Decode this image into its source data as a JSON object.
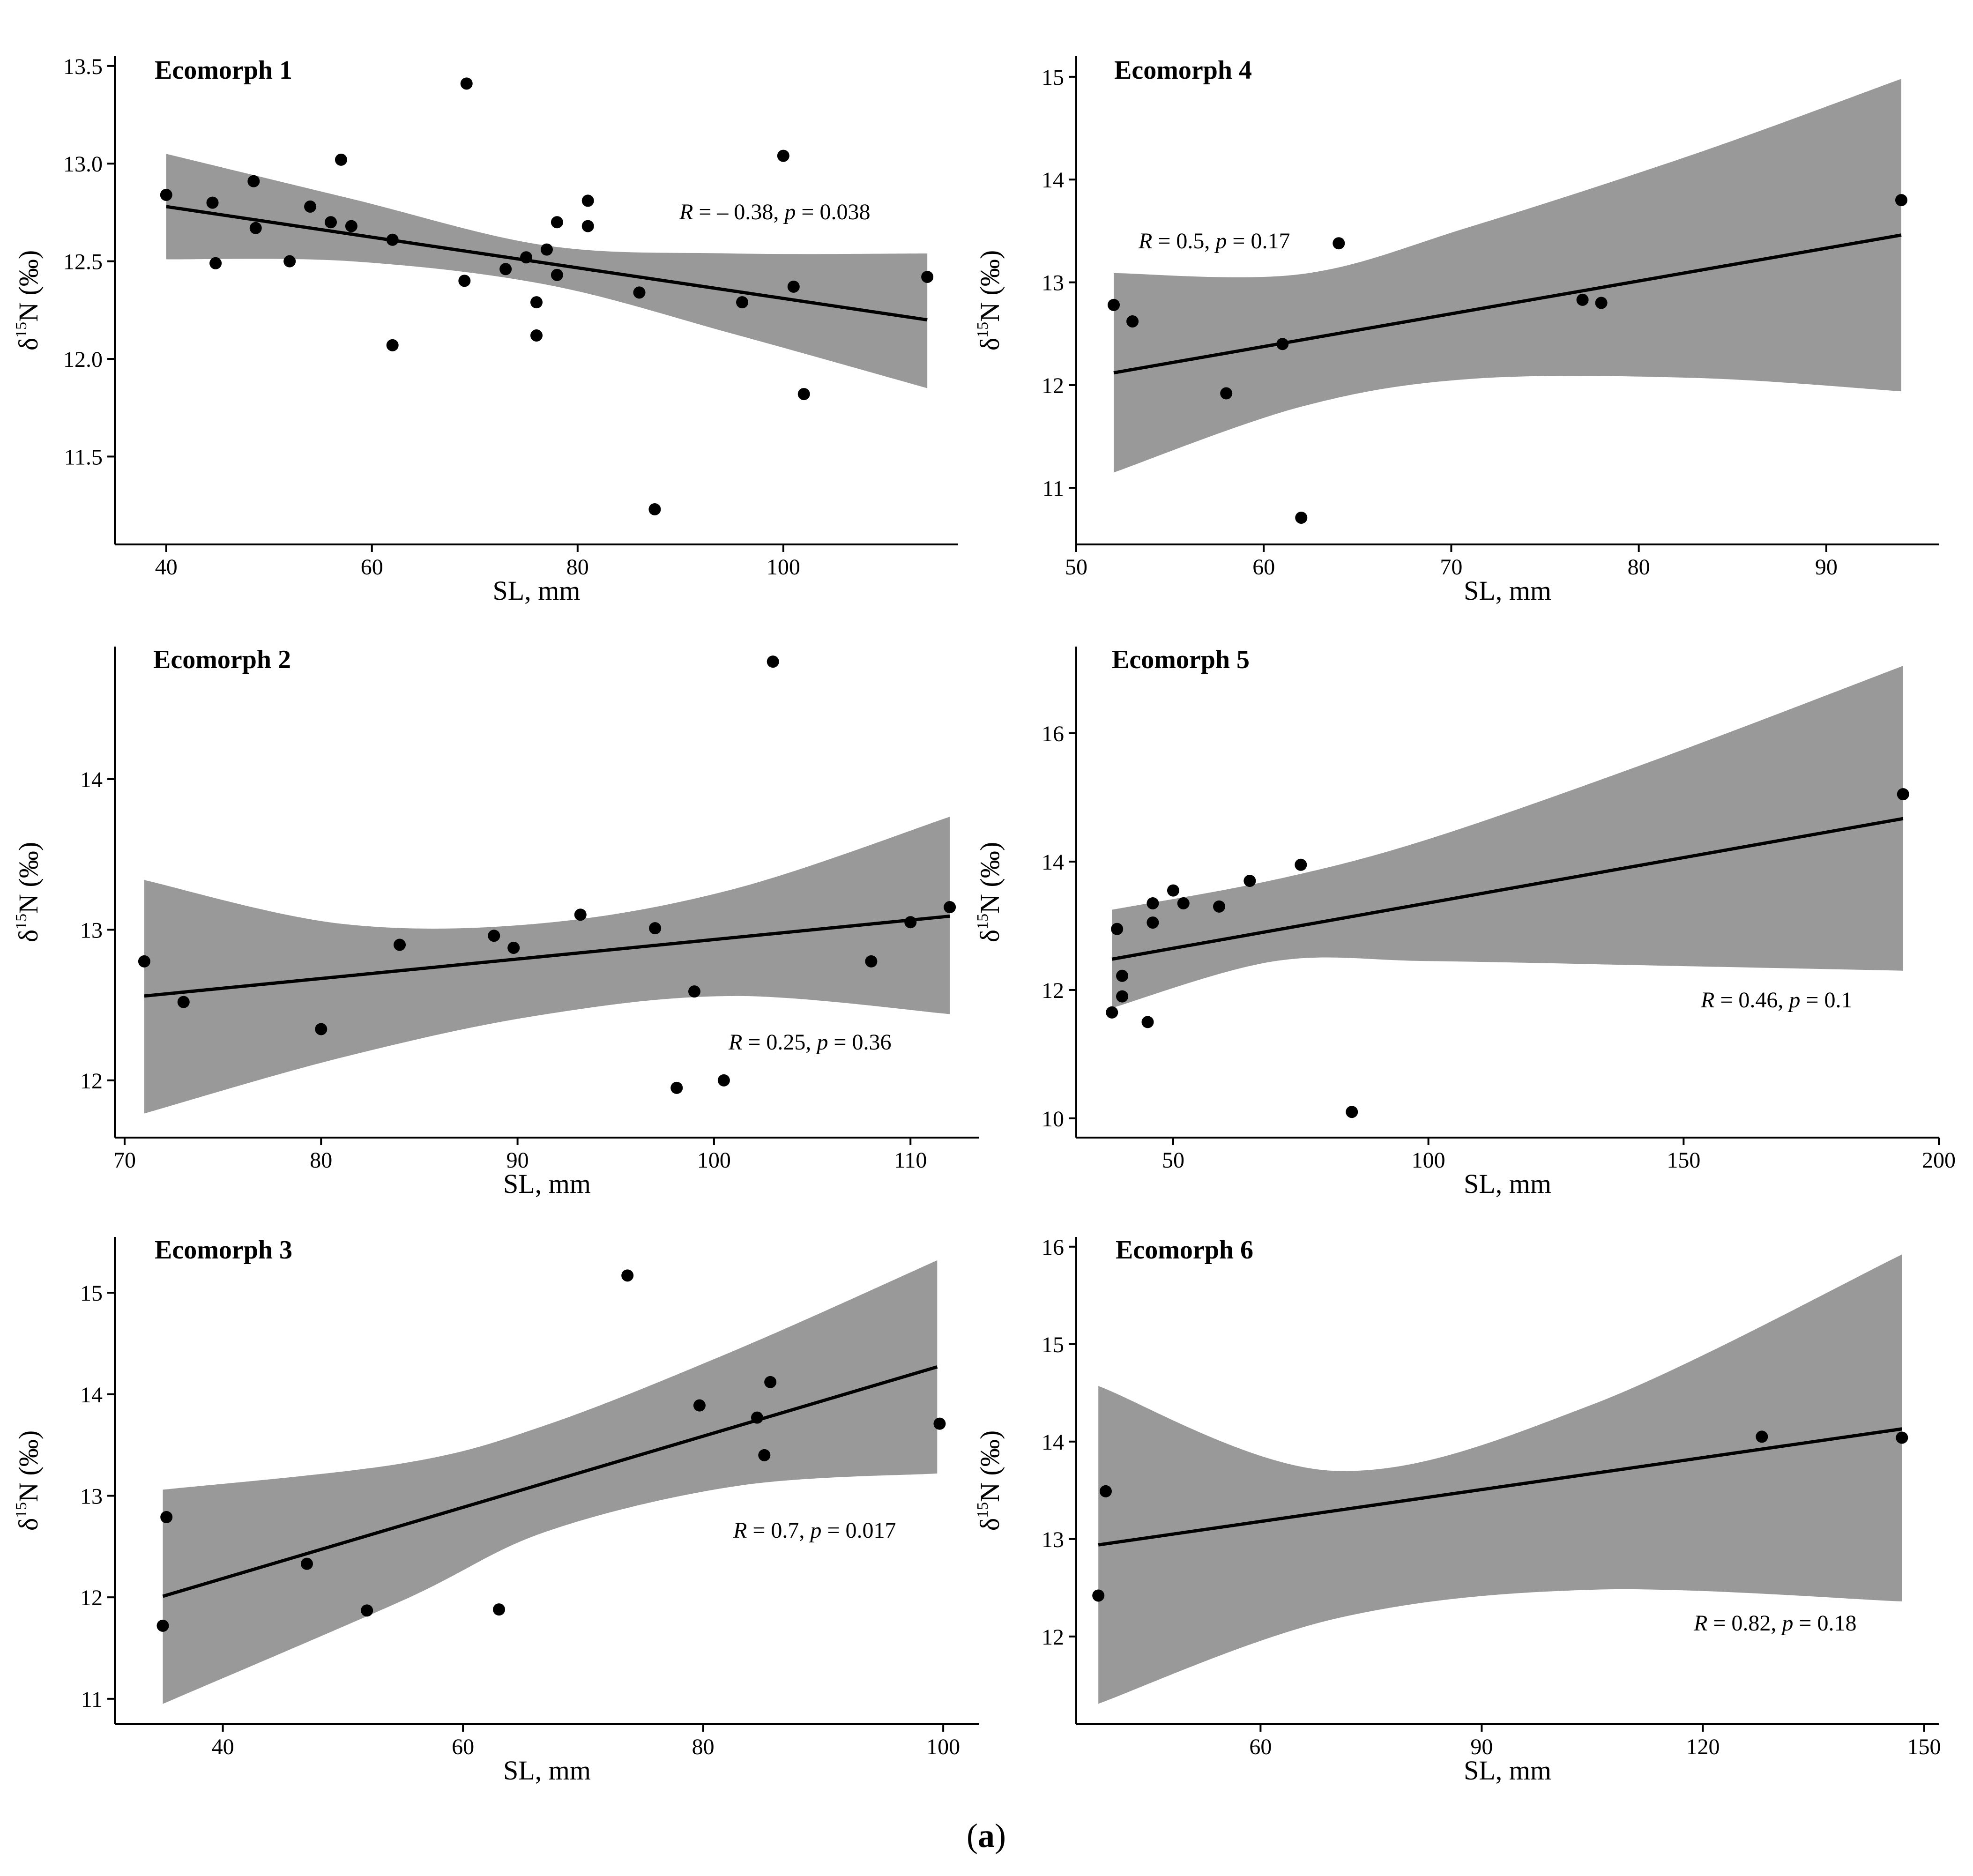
{
  "caption": "(a)",
  "caption_bold": "a",
  "chart_data": [
    {
      "type": "scatter",
      "title": "Ecomorph 1",
      "xlabel": "SL, mm",
      "ylabel": "δ15N (‰)",
      "xlim": [
        35,
        117
      ],
      "ylim": [
        11.05,
        13.55
      ],
      "xticks": [
        40,
        60,
        80,
        100
      ],
      "yticks": [
        11.5,
        12.0,
        12.5,
        13.0,
        13.5
      ],
      "ytick_labels": [
        "11.5",
        "12.0",
        "12.5",
        "13.0",
        "13.5"
      ],
      "x": [
        40,
        44.5,
        44.8,
        48.5,
        48.7,
        52,
        54,
        56,
        57,
        58,
        62,
        62,
        69,
        69.2,
        73,
        75,
        76,
        76,
        77,
        78,
        78,
        81,
        81,
        86,
        87.5,
        96,
        100,
        101,
        102,
        114
      ],
      "y": [
        12.84,
        12.8,
        12.49,
        12.91,
        12.67,
        12.5,
        12.78,
        12.7,
        13.02,
        12.68,
        12.61,
        12.07,
        12.4,
        13.41,
        12.46,
        12.52,
        12.29,
        12.12,
        12.56,
        12.43,
        12.7,
        12.81,
        12.68,
        12.34,
        11.23,
        12.29,
        13.04,
        12.37,
        11.82,
        12.42
      ],
      "fit": {
        "x": [
          40,
          114
        ],
        "y": [
          12.78,
          12.2
        ]
      },
      "ci": {
        "x": [
          40,
          58,
          77,
          95,
          114
        ],
        "lower": [
          12.51,
          12.5,
          12.38,
          12.13,
          11.85
        ],
        "upper": [
          13.05,
          12.82,
          12.58,
          12.54,
          12.54
        ]
      },
      "annotation": {
        "r_label": "R",
        "r_value": " = – 0.38, ",
        "p_label": "p",
        "p_value": " = 0.038"
      }
    },
    {
      "type": "scatter",
      "title": "Ecomorph 4",
      "xlabel": "SL, mm",
      "ylabel": "δ15N (‰)",
      "xlim": [
        50,
        96
      ],
      "ylim": [
        10.45,
        15.2
      ],
      "xticks": [
        50,
        60,
        70,
        80,
        90
      ],
      "yticks": [
        11,
        12,
        13,
        14,
        15
      ],
      "ytick_labels": [
        "11",
        "12",
        "13",
        "14",
        "15"
      ],
      "x": [
        52,
        53,
        58,
        61,
        62,
        64,
        77,
        78,
        94
      ],
      "y": [
        12.78,
        12.62,
        11.92,
        12.4,
        10.71,
        13.38,
        12.83,
        12.8,
        13.8
      ],
      "fit": {
        "x": [
          52,
          94
        ],
        "y": [
          12.12,
          13.46
        ]
      },
      "ci": {
        "x": [
          52,
          62,
          71,
          83,
          94
        ],
        "lower": [
          11.15,
          11.79,
          12.06,
          12.07,
          11.94
        ],
        "upper": [
          13.09,
          13.08,
          13.54,
          14.25,
          14.98
        ]
      },
      "annotation": {
        "r_label": "R",
        "r_value": " = 0.5, ",
        "p_label": "p",
        "p_value": " = 0.17"
      }
    },
    {
      "type": "scatter",
      "title": "Ecomorph 2",
      "xlabel": "SL, mm",
      "ylabel": "δ15N (‰)",
      "xlim": [
        69.5,
        113.5
      ],
      "ylim": [
        11.62,
        14.88
      ],
      "xticks": [
        70,
        80,
        90,
        100,
        110
      ],
      "yticks": [
        12,
        13,
        14
      ],
      "ytick_labels": [
        "12",
        "13",
        "14"
      ],
      "x": [
        71,
        73,
        80,
        84,
        88.8,
        89.8,
        93.2,
        97,
        98.1,
        99,
        100.5,
        103,
        108,
        110,
        112
      ],
      "y": [
        12.79,
        12.52,
        12.34,
        12.9,
        12.96,
        12.88,
        13.1,
        13.01,
        11.95,
        12.59,
        12.0,
        14.78,
        12.79,
        13.05,
        13.15
      ],
      "fit": {
        "x": [
          71,
          112
        ],
        "y": [
          12.56,
          13.09
        ]
      },
      "ci": {
        "x": [
          71,
          81,
          91,
          101,
          112
        ],
        "lower": [
          11.78,
          12.15,
          12.43,
          12.56,
          12.44
        ],
        "upper": [
          13.33,
          13.04,
          13.04,
          13.27,
          13.75
        ]
      },
      "annotation": {
        "r_label": "R",
        "r_value": " = 0.25, ",
        "p_label": "p",
        "p_value": " = 0.36"
      }
    },
    {
      "type": "scatter",
      "title": "Ecomorph 5",
      "xlabel": "SL, mm",
      "ylabel": "δ15N (‰)",
      "xlim": [
        31,
        200
      ],
      "ylim": [
        9.7,
        17.35
      ],
      "xticks": [
        50,
        100,
        150,
        200
      ],
      "yticks": [
        10,
        12,
        14,
        16
      ],
      "ytick_labels": [
        "10",
        "12",
        "14",
        "16"
      ],
      "x": [
        38,
        39,
        40,
        40,
        45,
        46,
        46,
        50,
        52,
        59,
        65,
        75,
        85,
        193
      ],
      "y": [
        11.65,
        12.95,
        12.22,
        11.9,
        11.5,
        13.05,
        13.35,
        13.55,
        13.35,
        13.3,
        13.7,
        13.95,
        10.1,
        15.05
      ],
      "fit": {
        "x": [
          38,
          193
        ],
        "y": [
          12.48,
          14.67
        ]
      },
      "ci": {
        "x": [
          38,
          70,
          100,
          145,
          193
        ],
        "lower": [
          11.72,
          12.45,
          12.45,
          12.38,
          12.3
        ],
        "upper": [
          13.25,
          13.72,
          14.35,
          15.6,
          17.05
        ]
      },
      "annotation": {
        "r_label": "R",
        "r_value": " = 0.46, ",
        "p_label": "p",
        "p_value": " = 0.1"
      }
    },
    {
      "type": "scatter",
      "title": "Ecomorph 3",
      "xlabel": "SL, mm",
      "ylabel": "δ15N (‰)",
      "xlim": [
        31,
        103
      ],
      "ylim": [
        10.75,
        15.55
      ],
      "xticks": [
        40,
        60,
        80,
        100
      ],
      "yticks": [
        11,
        12,
        13,
        14,
        15
      ],
      "ytick_labels": [
        "11",
        "12",
        "13",
        "14",
        "15"
      ],
      "x": [
        35,
        35.3,
        47,
        52,
        63,
        73.7,
        79.7,
        84.5,
        85.1,
        85.6,
        99.7
      ],
      "y": [
        11.72,
        12.79,
        12.33,
        11.87,
        11.88,
        15.17,
        13.89,
        13.77,
        13.4,
        14.12,
        13.71
      ],
      "fit": {
        "x": [
          35,
          99.5
        ],
        "y": [
          12.01,
          14.27
        ]
      },
      "ci": {
        "x": [
          35,
          55,
          67,
          83,
          99.5
        ],
        "lower": [
          10.95,
          11.97,
          12.65,
          13.1,
          13.22
        ],
        "upper": [
          13.06,
          13.32,
          13.7,
          14.45,
          15.32
        ]
      },
      "annotation": {
        "r_label": "R",
        "r_value": " = 0.7, ",
        "p_label": "p",
        "p_value": " = 0.017"
      }
    },
    {
      "type": "scatter",
      "title": "Ecomorph 6",
      "xlabel": "SL, mm",
      "ylabel": "δ15N (‰)",
      "xlim": [
        35,
        152
      ],
      "ylim": [
        11.1,
        16.1
      ],
      "xticks": [
        60,
        90,
        120,
        150
      ],
      "yticks": [
        12,
        13,
        14,
        15,
        16
      ],
      "ytick_labels": [
        "12",
        "13",
        "14",
        "15",
        "16"
      ],
      "x": [
        38,
        39,
        128,
        147
      ],
      "y": [
        12.42,
        13.49,
        14.05,
        14.04
      ],
      "fit": {
        "x": [
          38,
          147
        ],
        "y": [
          12.94,
          14.13
        ]
      },
      "ci": {
        "x": [
          38,
          70,
          105,
          147
        ],
        "lower": [
          11.31,
          12.18,
          12.48,
          12.36
        ],
        "upper": [
          14.57,
          13.7,
          14.38,
          15.92
        ]
      },
      "annotation": {
        "r_label": "R",
        "r_value": " = 0.82, ",
        "p_label": "p",
        "p_value": " = 0.18"
      }
    }
  ]
}
